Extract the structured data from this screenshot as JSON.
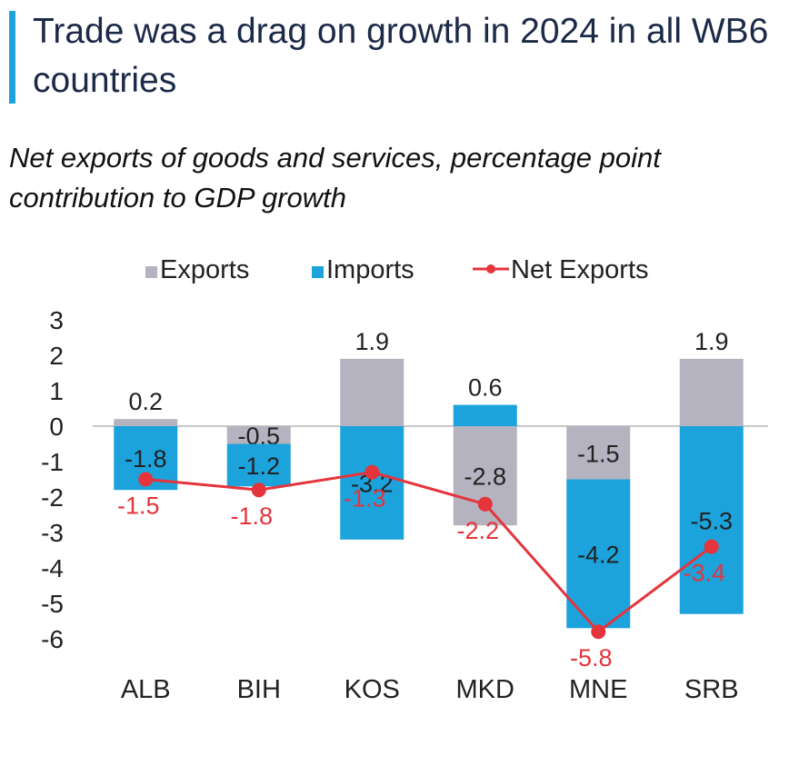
{
  "chart_data": {
    "type": "bar",
    "title": "Trade was a drag on growth in 2024 in all WB6 countries",
    "subtitle": "Net exports of goods and services, percentage point contribution to GDP growth",
    "categories": [
      "ALB",
      "BIH",
      "KOS",
      "MKD",
      "MNE",
      "SRB"
    ],
    "series": [
      {
        "name": "Exports",
        "color": "#b4b3bf",
        "values": [
          0.2,
          -0.5,
          1.9,
          -2.8,
          -1.5,
          1.9
        ]
      },
      {
        "name": "Imports",
        "color": "#1ca3dc",
        "values": [
          -1.8,
          -1.2,
          -3.2,
          0.6,
          -4.2,
          -5.3
        ]
      },
      {
        "name": "Net Exports",
        "type": "line",
        "color": "#e5343b",
        "values": [
          -1.5,
          -1.8,
          -1.3,
          -2.2,
          -5.8,
          -3.4
        ]
      }
    ],
    "ylim": [
      -6,
      3
    ],
    "yticks": [
      3,
      2,
      1,
      0,
      -1,
      -2,
      -3,
      -4,
      -5,
      -6
    ]
  }
}
